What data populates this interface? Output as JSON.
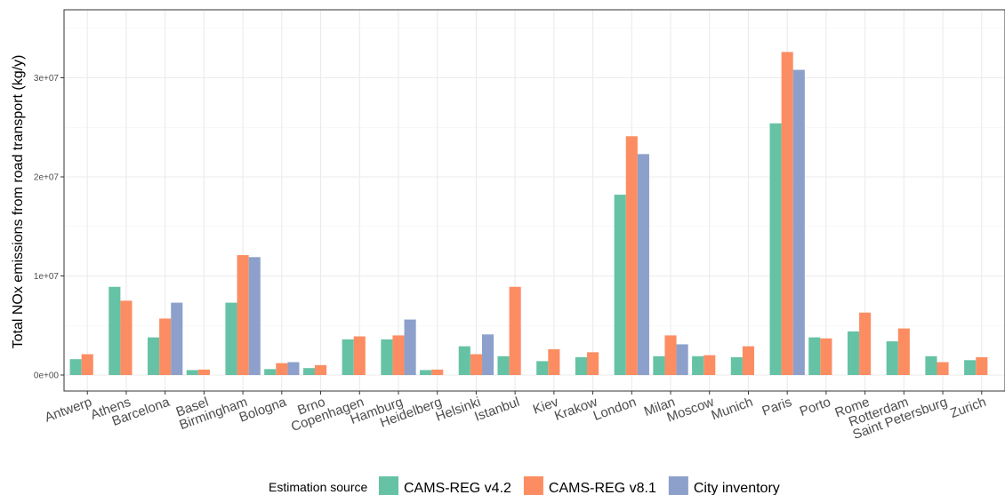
{
  "chart_data": {
    "type": "bar",
    "title": "",
    "xlabel": "",
    "ylabel": "Total NOx emissions from road transport (kg/y)",
    "ylim": [
      0,
      35500000
    ],
    "yticks": [
      0,
      10000000,
      20000000,
      30000000
    ],
    "ytick_labels": [
      "0e+00",
      "1e+07",
      "2e+07",
      "3e+07"
    ],
    "grid": true,
    "legend_position": "bottom",
    "legend_title": "Estimation source",
    "categories": [
      "Antwerp",
      "Athens",
      "Barcelona",
      "Basel",
      "Birmingham",
      "Bologna",
      "Brno",
      "Copenhagen",
      "Hamburg",
      "Heidelberg",
      "Helsinki",
      "Istanbul",
      "Kiev",
      "Krakow",
      "London",
      "Milan",
      "Moscow",
      "Munich",
      "Paris",
      "Porto",
      "Rome",
      "Rotterdam",
      "Saint Petersburg",
      "Zurich"
    ],
    "series": [
      {
        "name": "CAMS-REG v4.2",
        "color": "#66c2a5",
        "values": [
          1600000,
          8900000,
          3800000,
          500000,
          7300000,
          600000,
          700000,
          3600000,
          3600000,
          500000,
          2900000,
          1900000,
          1400000,
          1800000,
          18200000,
          1900000,
          1900000,
          1800000,
          25400000,
          3800000,
          4400000,
          3400000,
          1900000,
          1500000
        ]
      },
      {
        "name": "CAMS-REG v8.1",
        "color": "#fc8d62",
        "values": [
          2100000,
          7500000,
          5700000,
          550000,
          12100000,
          1200000,
          1000000,
          3900000,
          4000000,
          550000,
          2100000,
          8900000,
          2600000,
          2300000,
          24100000,
          4000000,
          2000000,
          2900000,
          32600000,
          3700000,
          6300000,
          4700000,
          1300000,
          1800000
        ]
      },
      {
        "name": "City inventory",
        "color": "#8da0cb",
        "values": [
          null,
          null,
          7300000,
          null,
          11900000,
          1300000,
          null,
          null,
          5600000,
          null,
          4100000,
          null,
          null,
          null,
          22300000,
          3100000,
          null,
          null,
          30800000,
          null,
          null,
          null,
          null,
          null
        ]
      }
    ]
  }
}
